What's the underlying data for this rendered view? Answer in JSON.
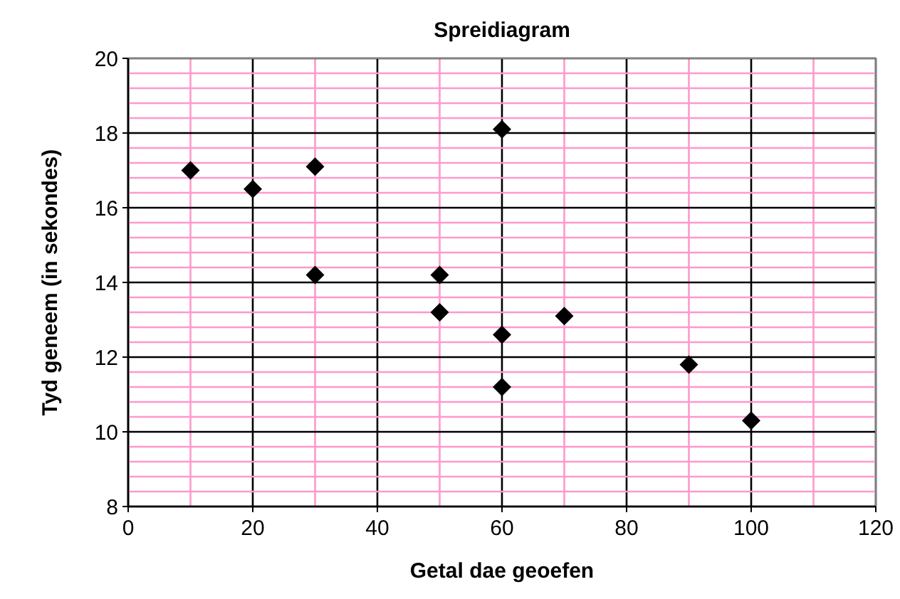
{
  "chart_data": {
    "type": "scatter",
    "title": "Spreidiagram",
    "xlabel": "Getal dae geoefen",
    "ylabel": "Tyd geneem (in sekondes)",
    "x": [
      10,
      20,
      30,
      30,
      50,
      50,
      60,
      60,
      60,
      70,
      90,
      100
    ],
    "series": [
      {
        "color": "#000000",
        "values": [
          17.0,
          16.5,
          17.1,
          14.2,
          14.2,
          13.2,
          18.1,
          12.6,
          11.2,
          13.1,
          11.8,
          10.3
        ]
      }
    ],
    "xlim": [
      0,
      120
    ],
    "ylim": [
      8,
      20
    ],
    "xticks": [
      0,
      {
        "value": 10,
        "label": null
      },
      20,
      {
        "value": 30,
        "label": null
      },
      40,
      {
        "value": 50,
        "label": null
      },
      60,
      {
        "value": 70,
        "label": null
      },
      80,
      {
        "value": 90,
        "label": null
      },
      100,
      {
        "value": 110,
        "label": null
      },
      120
    ],
    "yticks": [
      8,
      {
        "value": 8.4,
        "label": null
      },
      {
        "value": 8.8,
        "label": null
      },
      {
        "value": 9.2,
        "label": null
      },
      {
        "value": 9.6,
        "label": null
      },
      10,
      {
        "value": 10.4,
        "label": null
      },
      {
        "value": 10.8,
        "label": null
      },
      {
        "value": 11.2,
        "label": null
      },
      {
        "value": 11.6,
        "label": null
      },
      12,
      {
        "value": 12.4,
        "label": null
      },
      {
        "value": 12.8,
        "label": null
      },
      {
        "value": 13.2,
        "label": null
      },
      {
        "value": 13.6,
        "label": null
      },
      14,
      {
        "value": 14.4,
        "label": null
      },
      {
        "value": 14.8,
        "label": null
      },
      {
        "value": 15.2,
        "label": null
      },
      {
        "value": 15.6,
        "label": null
      },
      16,
      {
        "value": 16.4,
        "label": null
      },
      {
        "value": 16.8,
        "label": null
      },
      {
        "value": 17.2,
        "label": null
      },
      {
        "value": 17.6,
        "label": null
      },
      18,
      {
        "value": 18.4,
        "label": null
      },
      {
        "value": 18.8,
        "label": null
      },
      {
        "value": 19.2,
        "label": null
      },
      {
        "value": 19.6,
        "label": null
      },
      20
    ],
    "grid": true,
    "marker": "diamond"
  }
}
